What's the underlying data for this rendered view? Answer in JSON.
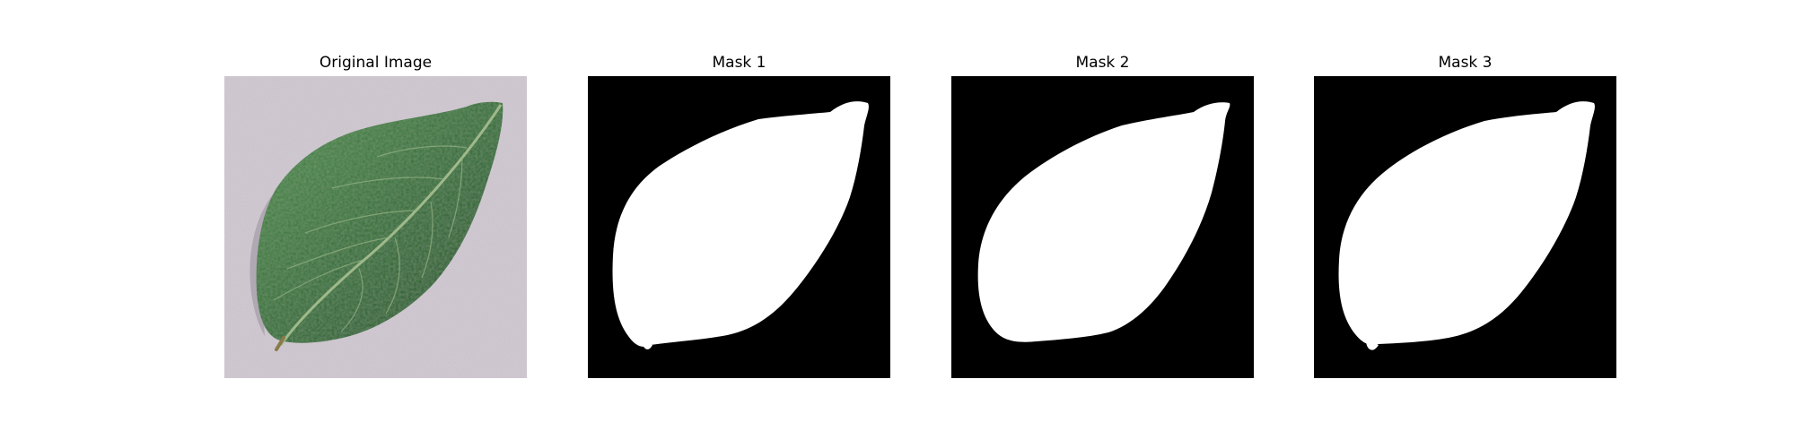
{
  "figure": {
    "panels": [
      {
        "title": "Original Image",
        "kind": "photo"
      },
      {
        "title": "Mask 1",
        "kind": "mask"
      },
      {
        "title": "Mask 2",
        "kind": "mask"
      },
      {
        "title": "Mask 3",
        "kind": "mask"
      }
    ]
  },
  "colors": {
    "background": "#ffffff",
    "mask_background": "#000000",
    "mask_foreground": "#ffffff",
    "photo_background": "#c8c0c9",
    "leaf_dark": "#1f4a22",
    "leaf_mid": "#2f6a32",
    "leaf_light": "#4f8a4a",
    "vein": "#9fb98a"
  }
}
